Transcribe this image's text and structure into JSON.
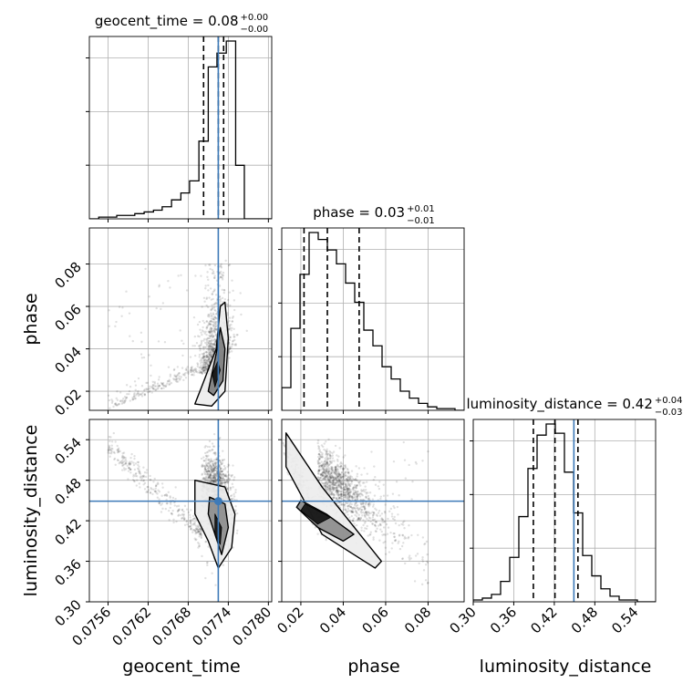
{
  "chart_data": {
    "type": "corner",
    "parameters": [
      "geocent_time",
      "phase",
      "luminosity_distance"
    ],
    "axis_labels": {
      "geocent_time": "geocent_time",
      "phase": "phase",
      "luminosity_distance": "luminosity_distance"
    },
    "ranges": {
      "geocent_time": [
        0.07532,
        0.07805
      ],
      "phase": [
        0.011,
        0.097
      ],
      "luminosity_distance": [
        0.3,
        0.57
      ]
    },
    "ticks": {
      "geocent_time": [
        "0.0756",
        "0.0762",
        "0.0768",
        "0.0774",
        "0.0780"
      ],
      "geocent_time_values": [
        0.0756,
        0.0762,
        0.0768,
        0.0774,
        0.078
      ],
      "phase": [
        "0.02",
        "0.04",
        "0.06",
        "0.08"
      ],
      "phase_values": [
        0.02,
        0.04,
        0.06,
        0.08
      ],
      "luminosity_distance": [
        "0.30",
        "0.36",
        "0.42",
        "0.48",
        "0.54"
      ],
      "luminosity_distance_values": [
        0.3,
        0.36,
        0.42,
        0.48,
        0.54
      ]
    },
    "titles": [
      {
        "main": "geocent_time = 0.08",
        "sup": "+0.00",
        "sub": "−0.00"
      },
      {
        "main": "phase = 0.03",
        "sup": "+0.01",
        "sub": "−0.01"
      },
      {
        "main": "luminosity_distance = 0.42",
        "sup": "+0.04",
        "sub": "−0.03"
      }
    ],
    "truths": {
      "geocent_time": 0.07725,
      "phase": null,
      "luminosity_distance": 0.449
    },
    "quantiles": {
      "geocent_time": [
        0.07703,
        0.07725,
        0.07733
      ],
      "phase": [
        0.0215,
        0.0325,
        0.0475
      ],
      "luminosity_distance": [
        0.389,
        0.421,
        0.455
      ]
    },
    "histograms": {
      "geocent_time": {
        "edges": [
          0.07532,
          0.07546,
          0.07559,
          0.07573,
          0.07587,
          0.076,
          0.07614,
          0.07628,
          0.07641,
          0.07655,
          0.07669,
          0.07682,
          0.07696,
          0.0771,
          0.07723,
          0.07737,
          0.07751,
          0.07764,
          0.07778,
          0.07791,
          0.07805
        ],
        "counts": [
          0,
          1,
          1,
          2,
          2,
          3,
          4,
          5,
          7,
          11,
          15,
          22,
          45,
          88,
          96,
          103,
          31,
          0,
          0,
          0
        ]
      },
      "phase": {
        "edges": [
          0.011,
          0.0153,
          0.0196,
          0.0239,
          0.0282,
          0.0325,
          0.0368,
          0.0411,
          0.0454,
          0.0497,
          0.054,
          0.0583,
          0.0626,
          0.0669,
          0.0712,
          0.0755,
          0.0798,
          0.0841,
          0.0884,
          0.0927,
          0.097
        ],
        "counts": [
          13,
          47,
          78,
          102,
          98,
          92,
          84,
          73,
          62,
          46,
          37,
          25,
          18,
          11,
          7,
          4,
          2,
          1,
          1,
          0
        ]
      },
      "luminosity_distance": {
        "edges": [
          0.3,
          0.3135,
          0.327,
          0.3405,
          0.354,
          0.3675,
          0.381,
          0.3945,
          0.408,
          0.4215,
          0.435,
          0.4485,
          0.462,
          0.4755,
          0.489,
          0.5025,
          0.516,
          0.5295,
          0.543,
          0.5565,
          0.57
        ],
        "counts": [
          1,
          2,
          4,
          11,
          24,
          46,
          72,
          90,
          96,
          91,
          70,
          48,
          25,
          14,
          7,
          3,
          1,
          1,
          0,
          0
        ]
      }
    },
    "pair_truth_points": [
      {
        "x": "geocent_time",
        "y": "phase",
        "value": [
          0.07725,
          null
        ]
      },
      {
        "x": "geocent_time",
        "y": "luminosity_distance",
        "value": [
          0.07725,
          0.449
        ]
      },
      {
        "x": "phase",
        "y": "luminosity_distance",
        "value": [
          null,
          0.449
        ]
      }
    ],
    "colors": {
      "truth": "#3d7ab8",
      "histogram": "#000000",
      "grid": "#b0b0b0",
      "scatter": "#000000"
    },
    "grid": true
  }
}
